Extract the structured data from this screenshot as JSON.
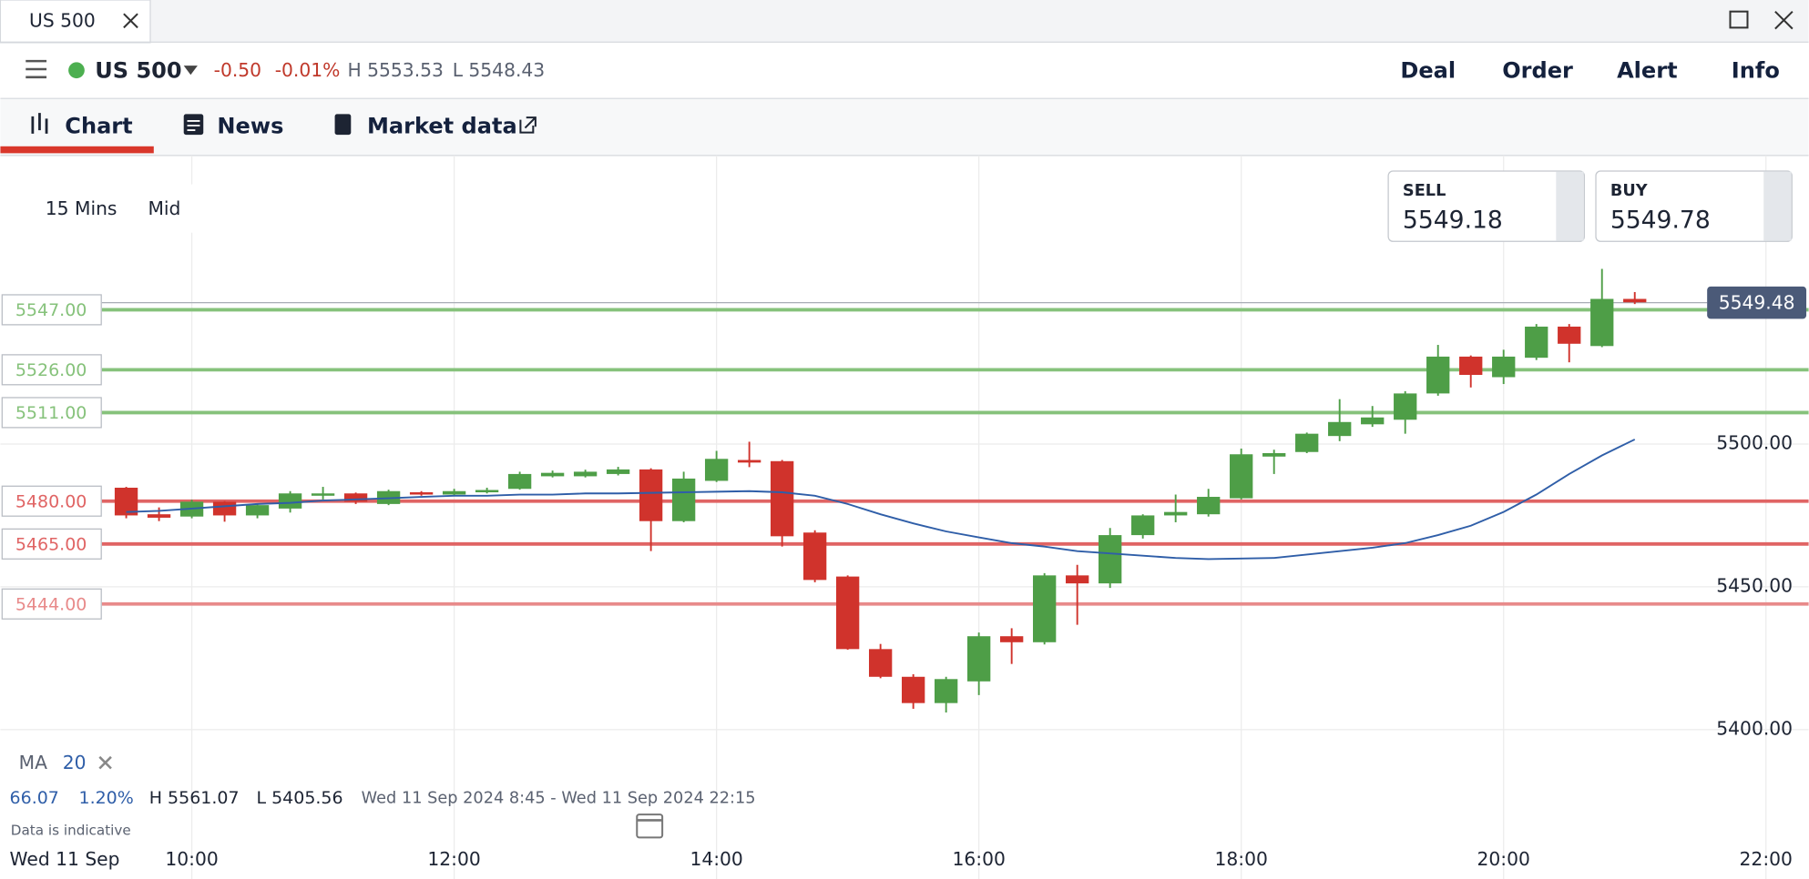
{
  "tab": {
    "title": "US 500"
  },
  "instrument": {
    "name": "US 500",
    "change": "-0.50",
    "change_pct": "-0.01%",
    "high": "H 5553.53",
    "low": "L 5548.43"
  },
  "nav": [
    "Deal",
    "Order",
    "Alert",
    "Info"
  ],
  "tabs": [
    "Chart",
    "News",
    "Market data"
  ],
  "settings": {
    "interval": "15 Mins",
    "price_type": "Mid"
  },
  "quote": {
    "sell_label": "SELL",
    "sell": "5549.18",
    "buy_label": "BUY",
    "buy": "5549.78"
  },
  "chart_data": {
    "type": "candlestick",
    "categories": [
      "09:30",
      "09:45",
      "10:00",
      "10:15",
      "10:30",
      "10:45",
      "11:00",
      "11:15",
      "11:30",
      "11:45",
      "12:00",
      "12:15",
      "12:30",
      "12:45",
      "13:00",
      "13:15",
      "13:30",
      "13:45",
      "14:00",
      "14:15",
      "14:30",
      "14:45",
      "15:00",
      "15:15",
      "15:30",
      "15:45",
      "16:00",
      "16:15",
      "16:30",
      "16:45",
      "17:00",
      "17:15",
      "17:30",
      "17:45",
      "18:00",
      "18:15",
      "18:30",
      "18:45",
      "19:00",
      "19:15",
      "19:30",
      "19:45",
      "20:00",
      "20:15",
      "20:30",
      "20:45",
      "21:00"
    ],
    "open": [
      5484.7,
      5475.4,
      5474.6,
      5479.8,
      5475.0,
      5477.4,
      5481.9,
      5482.7,
      5479.0,
      5483.1,
      5482.3,
      5483.1,
      5484.3,
      5488.7,
      5488.7,
      5489.5,
      5491.1,
      5473.0,
      5487.1,
      5494.4,
      5494.0,
      5469.0,
      5453.6,
      5428.2,
      5418.5,
      5409.3,
      5416.9,
      5432.7,
      5430.6,
      5454.0,
      5451.2,
      5468.1,
      5475.0,
      5475.4,
      5481.0,
      5495.6,
      5497.2,
      5502.8,
      5506.9,
      5508.5,
      5517.7,
      5530.6,
      5523.4,
      5530.2,
      5541.1,
      5534.3,
      5550.8
    ],
    "high": [
      5485.0,
      5477.8,
      5480.5,
      5480.0,
      5479.0,
      5483.5,
      5485.0,
      5483.0,
      5484.0,
      5483.5,
      5484.3,
      5484.7,
      5490.3,
      5490.7,
      5491.0,
      5492.0,
      5491.5,
      5490.3,
      5497.6,
      5500.8,
      5494.4,
      5469.8,
      5454.0,
      5430.0,
      5419.4,
      5418.5,
      5434.0,
      5435.5,
      5454.8,
      5457.7,
      5470.6,
      5475.4,
      5482.3,
      5484.3,
      5498.4,
      5498.0,
      5504.0,
      5515.7,
      5513.3,
      5518.5,
      5534.7,
      5531.0,
      5533.0,
      5542.0,
      5542.0,
      5561.3,
      5553.2
    ],
    "low": [
      5474.0,
      5473.0,
      5474.0,
      5472.8,
      5474.0,
      5476.0,
      5480.6,
      5479.0,
      5478.6,
      5481.9,
      5481.9,
      5482.7,
      5484.0,
      5488.3,
      5488.3,
      5489.0,
      5462.5,
      5472.6,
      5486.7,
      5491.9,
      5464.1,
      5451.6,
      5428.0,
      5418.0,
      5407.3,
      5406.0,
      5412.1,
      5423.0,
      5429.8,
      5436.7,
      5449.6,
      5466.9,
      5472.6,
      5474.6,
      5480.6,
      5489.5,
      5496.8,
      5501.0,
      5506.0,
      5503.6,
      5516.9,
      5519.8,
      5521.0,
      5529.4,
      5528.6,
      5533.9,
      5549.0
    ],
    "close": [
      5475.0,
      5474.2,
      5479.8,
      5475.0,
      5478.6,
      5482.7,
      5482.7,
      5479.8,
      5483.5,
      5482.3,
      5483.5,
      5483.9,
      5489.5,
      5489.9,
      5490.3,
      5491.1,
      5473.0,
      5487.9,
      5494.8,
      5493.5,
      5467.7,
      5452.4,
      5428.2,
      5418.5,
      5409.3,
      5417.7,
      5432.7,
      5430.6,
      5454.0,
      5451.2,
      5468.1,
      5475.0,
      5476.2,
      5481.5,
      5496.4,
      5496.8,
      5503.6,
      5507.7,
      5509.3,
      5517.7,
      5530.6,
      5524.2,
      5530.6,
      5541.1,
      5535.1,
      5550.8,
      5549.6
    ],
    "up_color": "#4e9e47",
    "down_color": "#d0332c",
    "ma": {
      "name": "MA",
      "period": 20,
      "color": "#2f5ea8",
      "values": [
        5476.2,
        5476.6,
        5477.4,
        5478.2,
        5479.0,
        5479.4,
        5480.2,
        5480.6,
        5481.0,
        5481.5,
        5481.9,
        5481.9,
        5482.3,
        5482.3,
        5482.7,
        5482.7,
        5482.9,
        5483.1,
        5483.3,
        5483.5,
        5483.1,
        5481.9,
        5479.0,
        5475.4,
        5472.2,
        5469.4,
        5467.3,
        5465.3,
        5464.1,
        5462.5,
        5461.7,
        5460.9,
        5460.1,
        5459.7,
        5459.9,
        5460.1,
        5461.3,
        5462.5,
        5463.7,
        5465.3,
        5468.1,
        5471.4,
        5476.2,
        5482.3,
        5489.5,
        5496.0,
        5501.6
      ]
    },
    "levels": [
      {
        "value": 5547,
        "label": "5547.00",
        "color": "#86c27b"
      },
      {
        "value": 5526,
        "label": "5526.00",
        "color": "#86c27b"
      },
      {
        "value": 5511,
        "label": "5511.00",
        "color": "#86c27b"
      },
      {
        "value": 5480,
        "label": "5480.00",
        "color": "#e06464"
      },
      {
        "value": 5465,
        "label": "5465.00",
        "color": "#e06464"
      },
      {
        "value": 5444,
        "label": "5444.00",
        "color": "#e88a8a"
      }
    ],
    "current_price": 5549.48,
    "ylim": [
      5359,
      5601
    ],
    "yticks": [
      {
        "value": 5400,
        "label": "5400.00"
      },
      {
        "value": 5450,
        "label": "5450.00"
      },
      {
        "value": 5500,
        "label": "5500.00"
      }
    ],
    "xticks": [
      "10:00",
      "12:00",
      "14:00",
      "16:00",
      "18:00",
      "20:00",
      "22:00"
    ],
    "grid": true
  },
  "footer": {
    "change": "66.07",
    "change_pct": "1.20%",
    "high": "H 5561.07",
    "low": "L 5405.56",
    "range": "Wed 11 Sep 2024 8:45 - Wed 11 Sep 2024 22:15",
    "note": "Data is indicative",
    "date": "Wed 11 Sep"
  }
}
